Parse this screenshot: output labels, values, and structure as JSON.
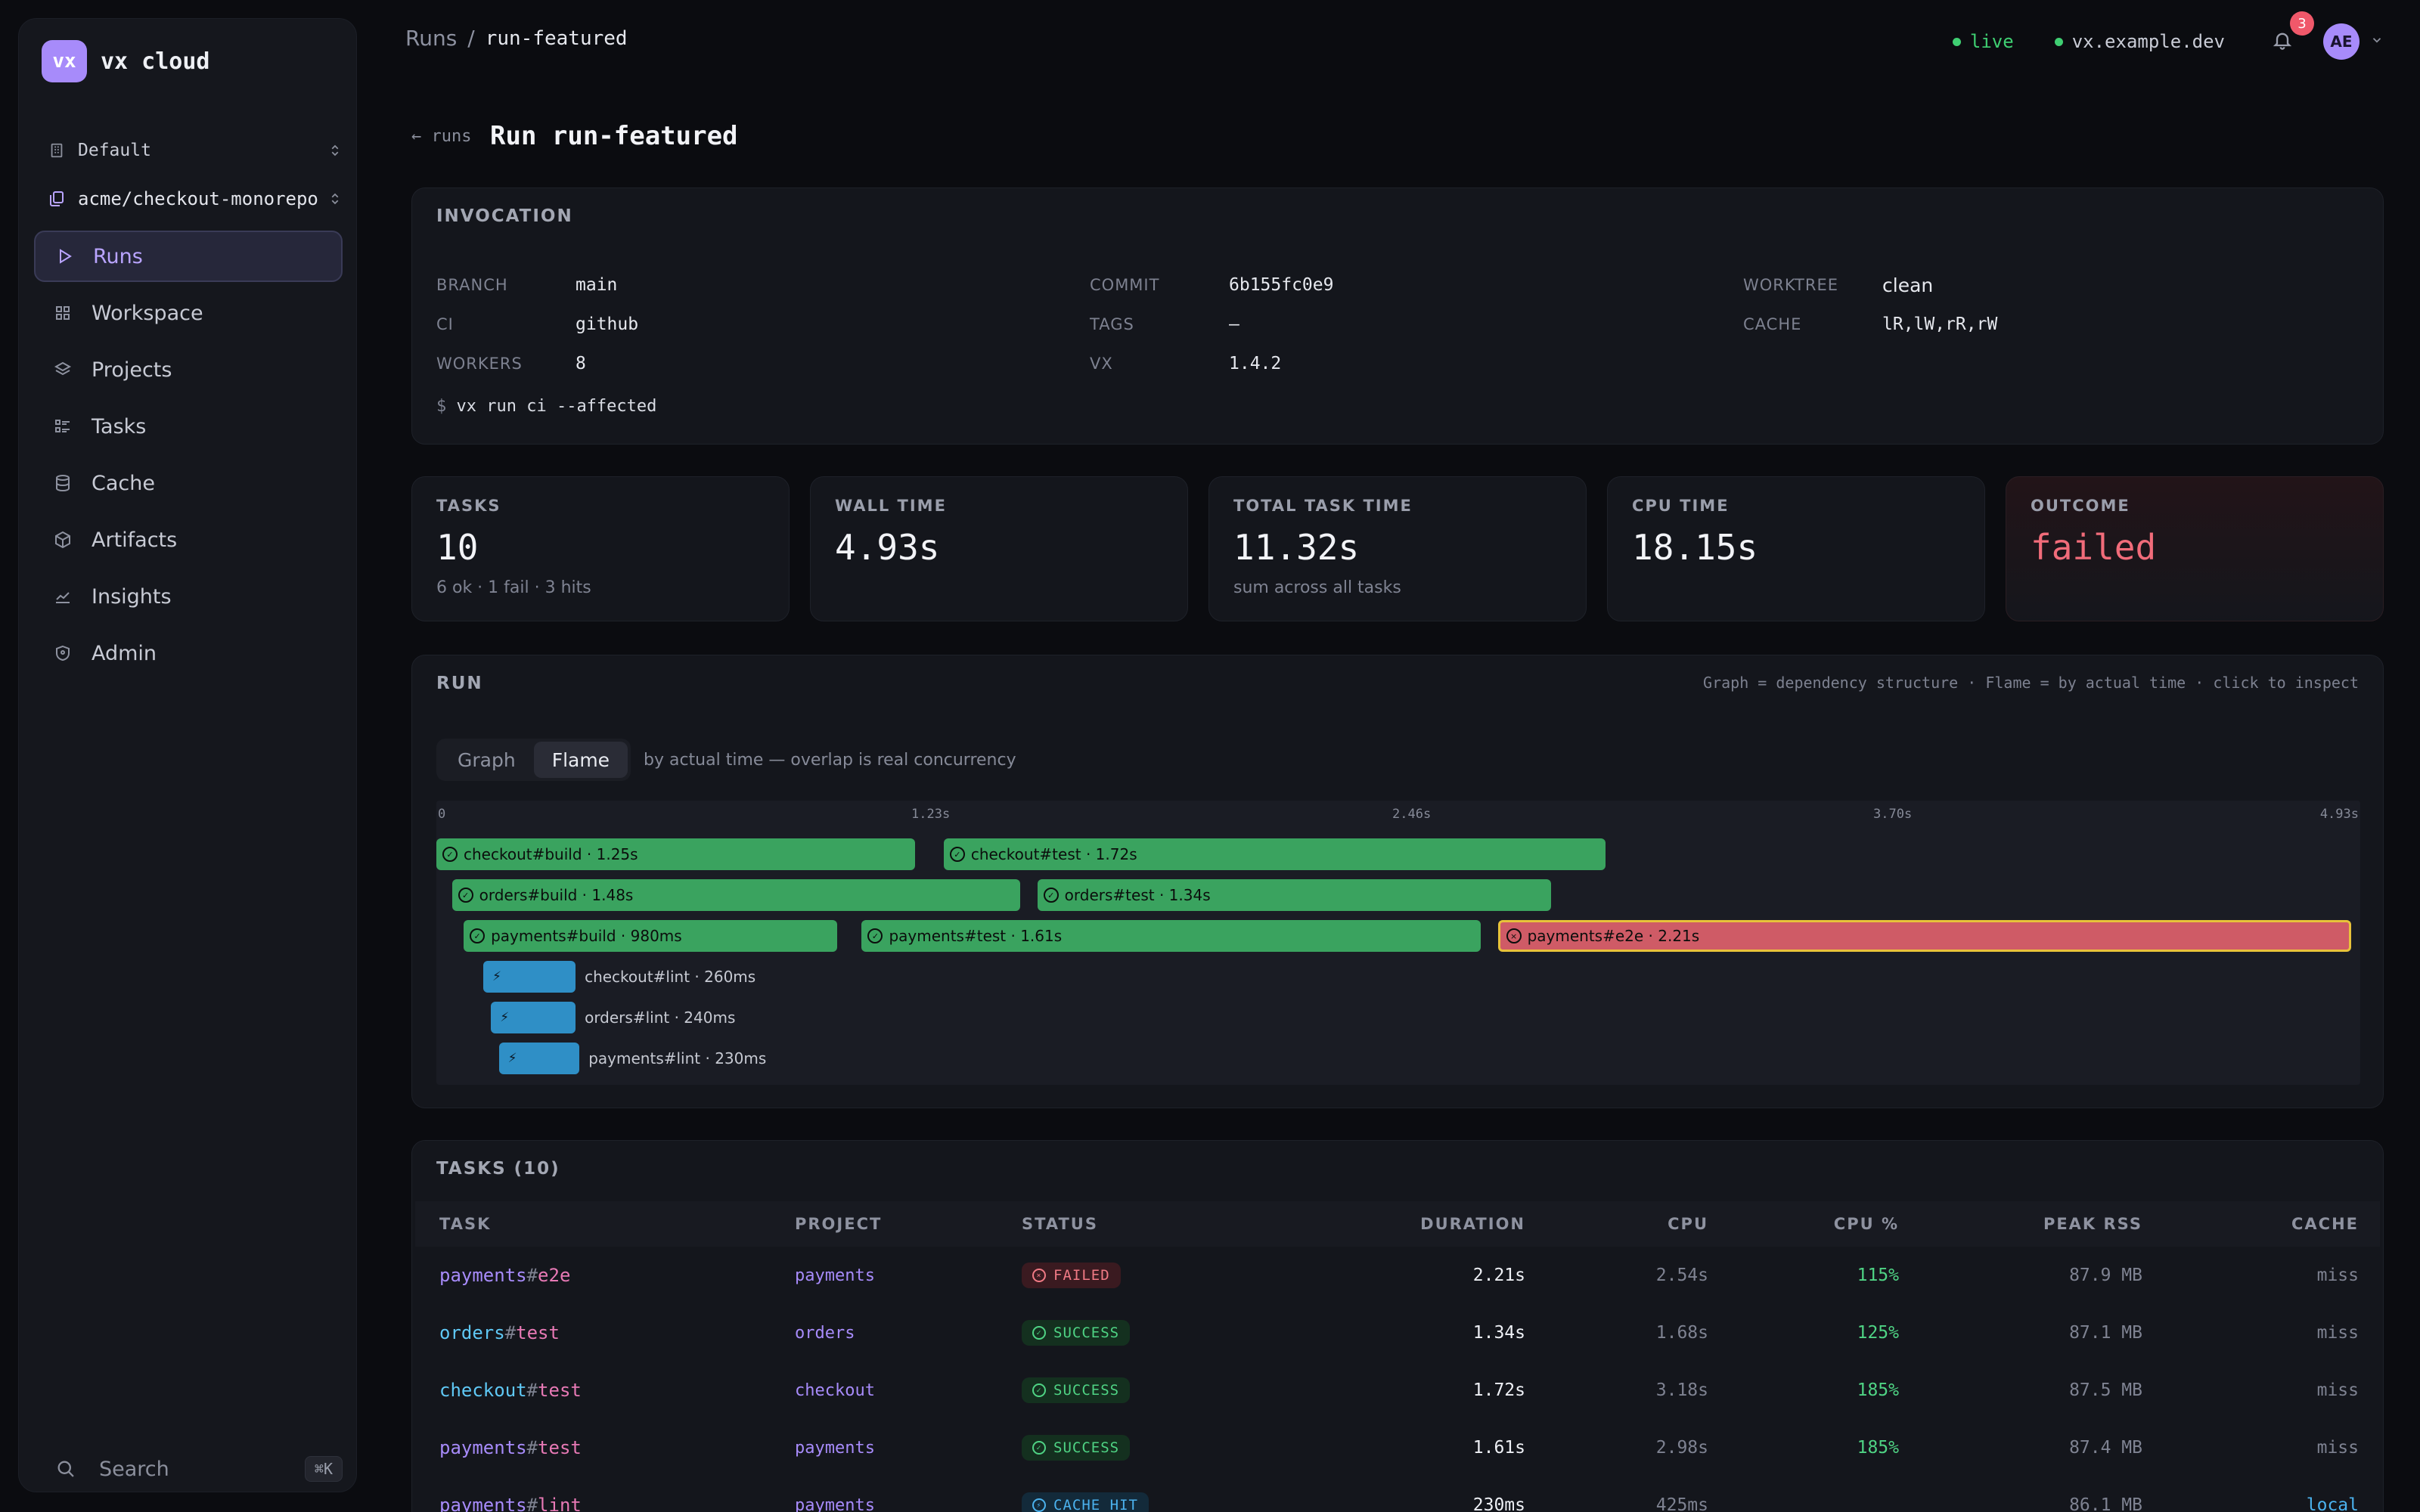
{
  "sidebar": {
    "logo_badge": "vx",
    "logo_text": "vx cloud",
    "org": "Default",
    "repo": "acme/checkout-monorepo",
    "nav": [
      {
        "label": "Runs",
        "icon": "play-icon"
      },
      {
        "label": "Workspace",
        "icon": "grid-icon"
      },
      {
        "label": "Projects",
        "icon": "layers-icon"
      },
      {
        "label": "Tasks",
        "icon": "list-icon"
      },
      {
        "label": "Cache",
        "icon": "database-icon"
      },
      {
        "label": "Artifacts",
        "icon": "box-icon"
      },
      {
        "label": "Insights",
        "icon": "chart-icon"
      },
      {
        "label": "Admin",
        "icon": "shield-icon"
      }
    ],
    "search_label": "Search",
    "search_kbd": "⌘K"
  },
  "topbar": {
    "crumb_root": "Runs",
    "crumb_sep": "/",
    "crumb_current": "run-featured",
    "status": "live",
    "host": "vx.example.dev",
    "notifications": "3",
    "avatar": "AE"
  },
  "header": {
    "back": "← runs",
    "title": "Run run-featured"
  },
  "invocation": {
    "heading": "INVOCATION",
    "fields": [
      {
        "k": "BRANCH",
        "v": "main"
      },
      {
        "k": "CI",
        "v": "github"
      },
      {
        "k": "WORKERS",
        "v": "8"
      },
      {
        "k": "COMMIT",
        "v": "6b155fc0e9"
      },
      {
        "k": "TAGS",
        "v": "—"
      },
      {
        "k": "VX",
        "v": "1.4.2"
      },
      {
        "k": "WORKTREE",
        "v": "clean"
      },
      {
        "k": "CACHE",
        "v": "lR,lW,rR,rW"
      }
    ],
    "prompt": "$",
    "command": "vx run ci --affected"
  },
  "stats": [
    {
      "label": "TASKS",
      "value": "10",
      "sub": "6 ok · 1 fail · 3 hits"
    },
    {
      "label": "WALL TIME",
      "value": "4.93s",
      "sub": ""
    },
    {
      "label": "TOTAL TASK TIME",
      "value": "11.32s",
      "sub": "sum across all tasks"
    },
    {
      "label": "CPU TIME",
      "value": "18.15s",
      "sub": ""
    },
    {
      "label": "OUTCOME",
      "value": "failed",
      "sub": ""
    }
  ],
  "run": {
    "heading": "RUN",
    "note": "Graph = dependency structure · Flame = by actual time · click to inspect",
    "tabs": [
      "Graph",
      "Flame"
    ],
    "active_tab": "Flame",
    "tabs_note": "by actual time — overlap is real concurrency",
    "total_s": 4.93,
    "ticks": [
      {
        "t": 0,
        "label": "0"
      },
      {
        "t": 1.2325,
        "label": "1.23s"
      },
      {
        "t": 2.465,
        "label": "2.46s"
      },
      {
        "t": 3.6975,
        "label": "3.70s"
      },
      {
        "t": 4.93,
        "label": "4.93s"
      }
    ],
    "spans": [
      {
        "label": "checkout#build · 1.25s",
        "start": 0.0,
        "dur": 1.25,
        "lane": 0,
        "kind": "ok"
      },
      {
        "label": "checkout#test · 1.72s",
        "start": 1.3,
        "dur": 1.72,
        "lane": 0,
        "kind": "ok"
      },
      {
        "label": "orders#build · 1.48s",
        "start": 0.04,
        "dur": 1.48,
        "lane": 1,
        "kind": "ok"
      },
      {
        "label": "orders#test · 1.34s",
        "start": 1.54,
        "dur": 1.34,
        "lane": 1,
        "kind": "ok"
      },
      {
        "label": "payments#build · 980ms",
        "start": 0.07,
        "dur": 0.98,
        "lane": 2,
        "kind": "ok"
      },
      {
        "label": "payments#test · 1.61s",
        "start": 1.09,
        "dur": 1.61,
        "lane": 2,
        "kind": "ok"
      },
      {
        "label": "payments#e2e · 2.21s",
        "start": 2.72,
        "dur": 2.21,
        "lane": 2,
        "kind": "err"
      },
      {
        "label": "checkout#lint · 260ms",
        "start": 0.12,
        "dur": 0.26,
        "lane": 3,
        "kind": "hit"
      },
      {
        "label": "orders#lint · 240ms",
        "start": 0.14,
        "dur": 0.24,
        "lane": 4,
        "kind": "hit"
      },
      {
        "label": "payments#lint · 230ms",
        "start": 0.16,
        "dur": 0.23,
        "lane": 5,
        "kind": "hit"
      }
    ],
    "colors": {
      "ok": "#3aa35f",
      "err": "#cf5b66",
      "hit": "#2f8fc6",
      "selected_outline": "#e8c23a"
    }
  },
  "tasks": {
    "heading": "TASKS (10)",
    "columns": [
      "TASK",
      "PROJECT",
      "STATUS",
      "DURATION",
      "CPU",
      "CPU %",
      "PEAK RSS",
      "CACHE"
    ],
    "rows": [
      {
        "project": "payments",
        "sep": "#",
        "target": "e2e",
        "proj": "payments",
        "status": "FAILED",
        "kind": "failed",
        "duration": "2.21s",
        "cpu": "2.54s",
        "cpu_pct": "115%",
        "rss": "87.9 MB",
        "cache": "miss"
      },
      {
        "project": "orders",
        "sep": "#",
        "target": "test",
        "proj": "orders",
        "status": "SUCCESS",
        "kind": "success",
        "duration": "1.34s",
        "cpu": "1.68s",
        "cpu_pct": "125%",
        "rss": "87.1 MB",
        "cache": "miss"
      },
      {
        "project": "checkout",
        "sep": "#",
        "target": "test",
        "proj": "checkout",
        "status": "SUCCESS",
        "kind": "success",
        "duration": "1.72s",
        "cpu": "3.18s",
        "cpu_pct": "185%",
        "rss": "87.5 MB",
        "cache": "miss"
      },
      {
        "project": "payments",
        "sep": "#",
        "target": "test",
        "proj": "payments",
        "status": "SUCCESS",
        "kind": "success",
        "duration": "1.61s",
        "cpu": "2.98s",
        "cpu_pct": "185%",
        "rss": "87.4 MB",
        "cache": "miss"
      },
      {
        "project": "payments",
        "sep": "#",
        "target": "lint",
        "proj": "payments",
        "status": "CACHE HIT",
        "kind": "cache",
        "duration": "230ms",
        "cpu": "425ms",
        "cpu_pct": "",
        "rss": "86.1 MB",
        "cache": "local"
      }
    ]
  }
}
